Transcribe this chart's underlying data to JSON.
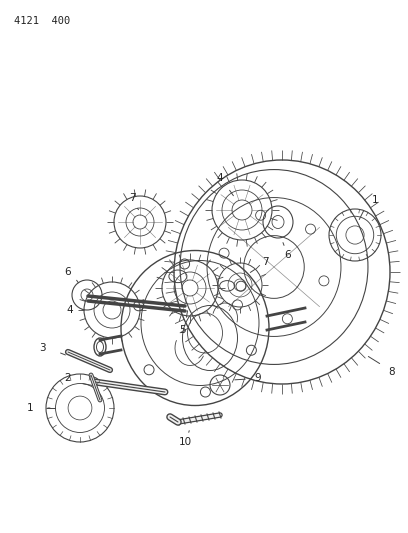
{
  "title": "4121  400",
  "bg": "#ffffff",
  "lc": "#444444",
  "tc": "#222222",
  "fig_w": 4.08,
  "fig_h": 5.33,
  "dpi": 100
}
